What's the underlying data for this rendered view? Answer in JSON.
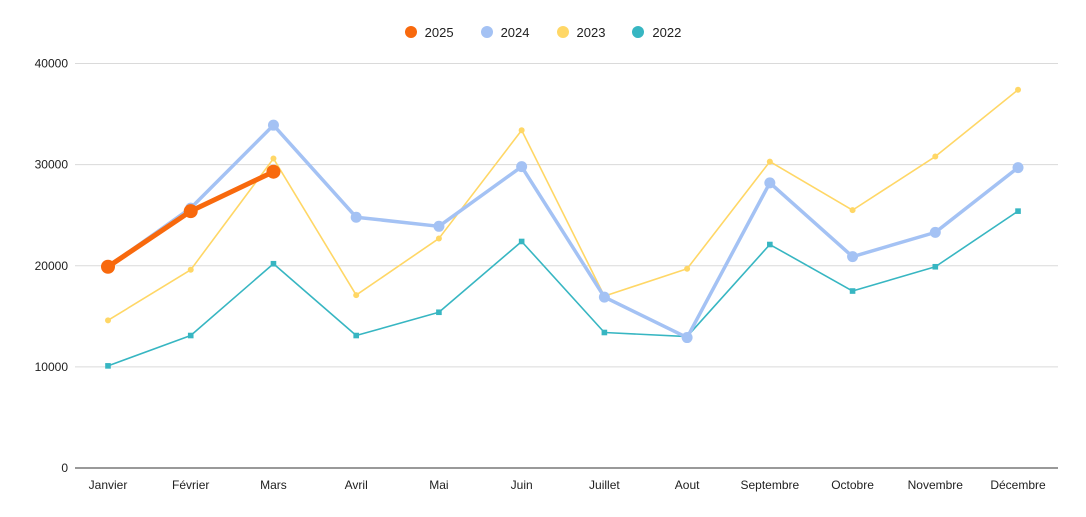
{
  "chart_data": {
    "type": "line",
    "title": "",
    "xlabel": "",
    "ylabel": "",
    "categories": [
      "Janvier",
      "Février",
      "Mars",
      "Avril",
      "Mai",
      "Juin",
      "Juillet",
      "Aout",
      "Septembre",
      "Octobre",
      "Novembre",
      "Décembre"
    ],
    "series": [
      {
        "name": "2025",
        "color": "#F8690D",
        "marker": "circle-large",
        "values": [
          19900,
          25400,
          29300,
          null,
          null,
          null,
          null,
          null,
          null,
          null,
          null,
          null
        ]
      },
      {
        "name": "2024",
        "color": "#A4C2F4",
        "marker": "circle",
        "values": [
          19900,
          25700,
          33900,
          24800,
          23900,
          29800,
          16900,
          12900,
          28200,
          20900,
          23300,
          29700
        ]
      },
      {
        "name": "2023",
        "color": "#FFD766",
        "marker": "dot",
        "values": [
          14600,
          19600,
          30600,
          17100,
          22700,
          33400,
          17000,
          19700,
          30300,
          25500,
          30800,
          37400
        ]
      },
      {
        "name": "2022",
        "color": "#37B6C2",
        "marker": "square",
        "values": [
          10100,
          13100,
          20200,
          13100,
          15400,
          22400,
          13400,
          13000,
          22100,
          17500,
          19900,
          25400
        ]
      }
    ],
    "ylim": [
      0,
      40000
    ],
    "yticks": [
      0,
      10000,
      20000,
      30000,
      40000
    ],
    "ytick_labels": [
      "0",
      "10000",
      "20000",
      "30000",
      "40000"
    ],
    "grid": true,
    "legend_position": "top-center",
    "colors": {
      "background": "#FFFFFF",
      "gridline": "#DADADA",
      "axis_line": "#333333",
      "text": "#212121"
    }
  }
}
